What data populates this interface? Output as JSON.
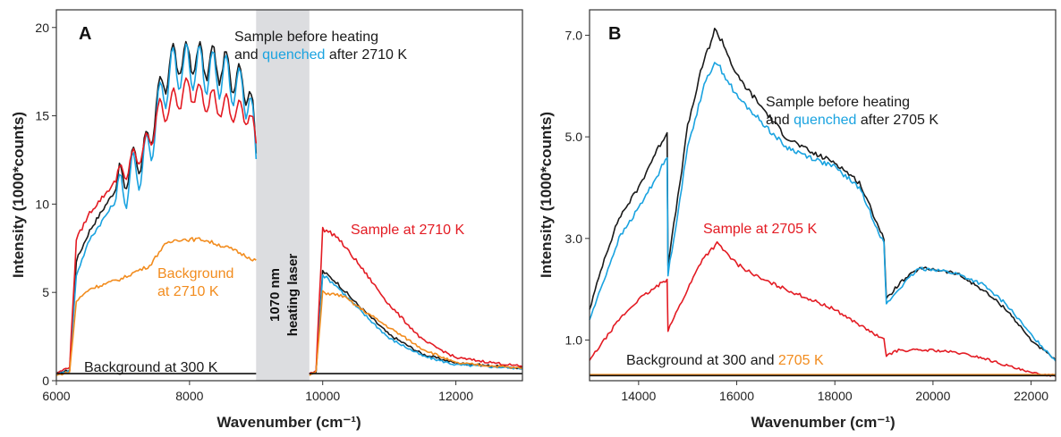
{
  "chart_data": [
    {
      "type": "line",
      "panel": "A",
      "xlabel": "Wavenumber (cm⁻¹)",
      "ylabel": "Intensity (1000*counts)",
      "xlim": [
        6000,
        13000
      ],
      "ylim": [
        0,
        21
      ],
      "xticks": [
        6000,
        8000,
        10000,
        12000
      ],
      "yticks": [
        0,
        5,
        10,
        15,
        20
      ],
      "xtick_labels": [
        "6000",
        "8000",
        "10000",
        "12000"
      ],
      "ytick_labels": [
        "0",
        "5",
        "10",
        "15",
        "20"
      ],
      "shaded_band": {
        "x_range": [
          9000,
          9800
        ],
        "label_line1": "1070 nm",
        "label_line2": "heating laser",
        "color": "#dcdde0"
      },
      "annotations": {
        "title_line1": "Sample before heating",
        "title_line2_a": "and ",
        "title_line2_b": "quenched",
        "title_line2_c": " after 2710 K",
        "sample_hot": "Sample at 2710 K",
        "background_line1": "Background",
        "background_line2": "at 2710 K",
        "background_cold": "Background at 300 K"
      },
      "colors": {
        "before": "#1a1a1a",
        "quenched": "#1aa3e0",
        "hot": "#e31b23",
        "background_hot": "#f28c1e",
        "background_cold": "#111111"
      },
      "series": [
        {
          "name": "Sample before heating",
          "color": "#1a1a1a",
          "x": [
            6000,
            6200,
            6300,
            6500,
            7000,
            7400,
            7500,
            7700,
            8000,
            8500,
            8900,
            9000,
            9800,
            9900,
            10000,
            10200,
            10500,
            11000,
            11500,
            12000,
            13000
          ],
          "y": [
            0.4,
            0.6,
            6.8,
            8.5,
            11.5,
            13.5,
            15.5,
            18.0,
            18.3,
            17.8,
            16.5,
            13.0,
            0.4,
            0.5,
            6.2,
            5.6,
            4.4,
            2.6,
            1.5,
            1.0,
            0.7
          ]
        },
        {
          "name": "quenched after 2710 K",
          "color": "#1aa3e0",
          "x": [
            6000,
            6200,
            6300,
            6500,
            7000,
            7400,
            7500,
            7700,
            8000,
            8500,
            8900,
            9000,
            9800,
            9900,
            10000,
            10200,
            10500,
            11000,
            11500,
            12000,
            13000
          ],
          "y": [
            0.4,
            0.6,
            6.0,
            8.0,
            10.8,
            13.0,
            15.0,
            17.5,
            17.8,
            17.3,
            16.0,
            12.5,
            0.4,
            0.5,
            6.0,
            5.4,
            4.2,
            2.4,
            1.4,
            0.9,
            0.7
          ]
        },
        {
          "name": "Sample at 2710 K",
          "color": "#e31b23",
          "x": [
            6000,
            6200,
            6300,
            6500,
            7000,
            7400,
            7500,
            8000,
            8500,
            8900,
            9000,
            9800,
            9900,
            10000,
            10200,
            10500,
            11000,
            11500,
            12000,
            13000
          ],
          "y": [
            0.4,
            0.8,
            8.0,
            9.5,
            11.8,
            13.5,
            15.0,
            16.5,
            15.5,
            15.0,
            13.5,
            0.4,
            0.6,
            8.6,
            8.2,
            6.8,
            4.3,
            2.3,
            1.3,
            0.8
          ]
        },
        {
          "name": "Background at 2710 K",
          "color": "#f28c1e",
          "x": [
            6000,
            6200,
            6300,
            6500,
            7000,
            7200,
            7400,
            7600,
            7800,
            8200,
            8600,
            9000,
            9800,
            9900,
            10000,
            10300,
            10600,
            11000,
            11500,
            12000,
            13000
          ],
          "y": [
            0.3,
            0.5,
            4.5,
            5.2,
            5.8,
            6.2,
            6.5,
            7.6,
            8.0,
            8.0,
            7.5,
            6.8,
            0.3,
            0.5,
            5.0,
            4.8,
            4.0,
            3.0,
            1.8,
            1.0,
            0.7
          ]
        },
        {
          "name": "Background at 300 K",
          "color": "#111111",
          "x": [
            6000,
            9000,
            9800,
            13000
          ],
          "y": [
            0.4,
            0.4,
            0.4,
            0.4
          ]
        }
      ]
    },
    {
      "type": "line",
      "panel": "B",
      "xlabel": "Wavenumber (cm⁻¹)",
      "ylabel": "Intensity (1000*counts)",
      "xlim": [
        13000,
        22500
      ],
      "ylim": [
        0.2,
        7.5
      ],
      "xticks": [
        14000,
        16000,
        18000,
        20000,
        22000
      ],
      "yticks": [
        1.0,
        3.0,
        5.0,
        7.0
      ],
      "xtick_labels": [
        "14000",
        "16000",
        "18000",
        "20000",
        "22000"
      ],
      "ytick_labels": [
        "1.0",
        "3.0",
        "5.0",
        "7.0"
      ],
      "annotations": {
        "title_line1": "Sample before heating",
        "title_line2_a": "and ",
        "title_line2_b": "quenched",
        "title_line2_c": " after 2705 K",
        "sample_hot": "Sample at 2705 K",
        "background_a": "Background at 300 and ",
        "background_b": "2705 K"
      },
      "colors": {
        "before": "#1a1a1a",
        "quenched": "#1aa3e0",
        "hot": "#e31b23",
        "background_hot": "#f28c1e",
        "background_cold": "#111111"
      },
      "series": [
        {
          "name": "Sample before heating",
          "color": "#1a1a1a",
          "x": [
            13000,
            13300,
            13600,
            14000,
            14300,
            14580,
            14600,
            14800,
            15000,
            15300,
            15550,
            15700,
            16000,
            16500,
            17000,
            17500,
            18000,
            18500,
            19000,
            19050,
            19300,
            19700,
            20000,
            20500,
            21000,
            21500,
            22000,
            22500
          ],
          "y": [
            1.6,
            2.6,
            3.4,
            4.0,
            4.6,
            5.1,
            2.5,
            3.8,
            5.2,
            6.4,
            7.1,
            6.9,
            6.2,
            5.6,
            5.0,
            4.7,
            4.5,
            4.1,
            3.0,
            1.8,
            2.1,
            2.4,
            2.4,
            2.3,
            2.0,
            1.6,
            1.0,
            0.6
          ]
        },
        {
          "name": "quenched after 2705 K",
          "color": "#1aa3e0",
          "x": [
            13000,
            13300,
            13600,
            14000,
            14300,
            14580,
            14600,
            14800,
            15000,
            15300,
            15550,
            15700,
            16000,
            16500,
            17000,
            17500,
            18000,
            18500,
            19000,
            19050,
            19300,
            19700,
            20000,
            20500,
            21000,
            21500,
            22000,
            22500
          ],
          "y": [
            1.4,
            2.2,
            3.0,
            3.6,
            4.1,
            4.6,
            2.3,
            3.5,
            4.8,
            5.9,
            6.5,
            6.3,
            5.8,
            5.3,
            4.8,
            4.6,
            4.4,
            4.0,
            2.9,
            1.7,
            2.0,
            2.4,
            2.4,
            2.3,
            2.1,
            1.7,
            1.1,
            0.6
          ]
        },
        {
          "name": "Sample at 2705 K",
          "color": "#e31b23",
          "x": [
            13000,
            13300,
            13600,
            14000,
            14300,
            14580,
            14600,
            14800,
            15000,
            15300,
            15600,
            15800,
            16000,
            16500,
            17000,
            17500,
            18000,
            18500,
            19000,
            19050,
            19300,
            19600,
            20000,
            20500,
            21000,
            21500,
            22000,
            22500
          ],
          "y": [
            0.6,
            1.0,
            1.4,
            1.8,
            2.0,
            2.2,
            1.2,
            1.6,
            2.0,
            2.6,
            2.9,
            2.7,
            2.5,
            2.2,
            2.0,
            1.8,
            1.6,
            1.3,
            1.0,
            0.7,
            0.8,
            0.8,
            0.8,
            0.75,
            0.65,
            0.5,
            0.35,
            0.3
          ]
        },
        {
          "name": "Background at 2705 K",
          "color": "#f28c1e",
          "x": [
            13000,
            22500
          ],
          "y": [
            0.32,
            0.32
          ]
        },
        {
          "name": "Background at 300",
          "color": "#111111",
          "x": [
            13000,
            22500
          ],
          "y": [
            0.3,
            0.3
          ]
        }
      ]
    }
  ]
}
